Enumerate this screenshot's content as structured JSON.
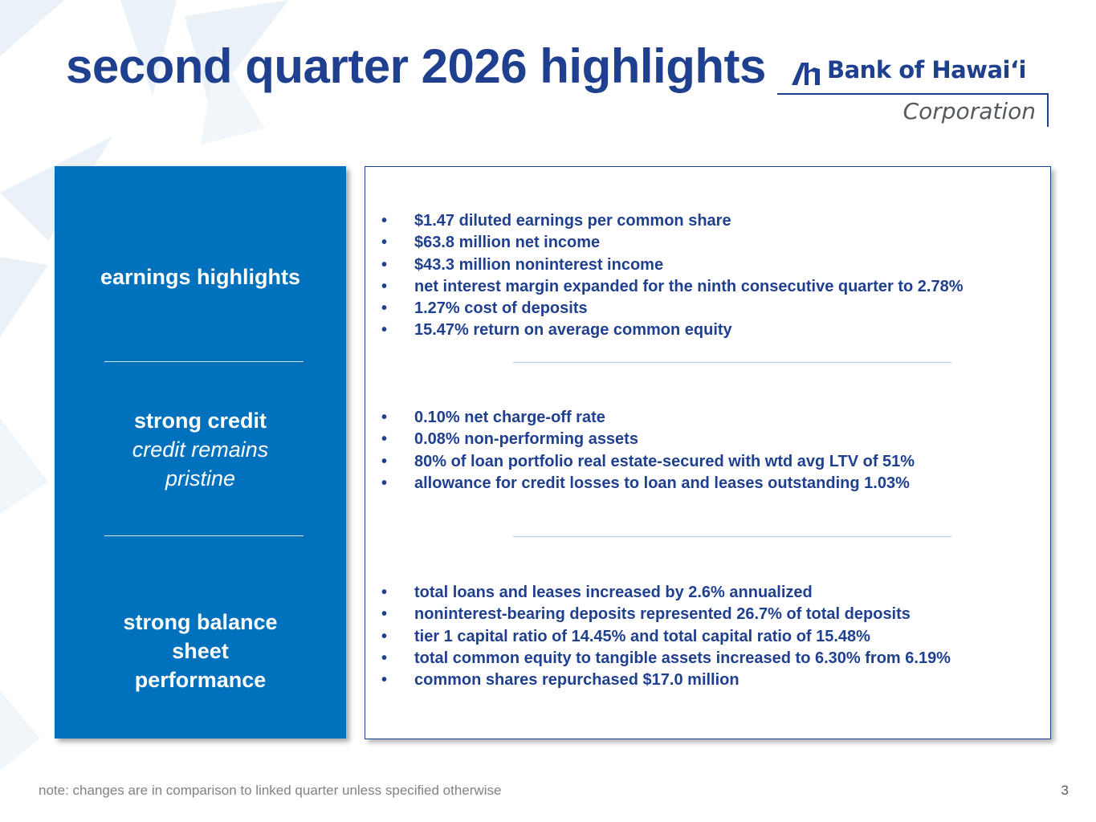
{
  "title": "second quarter 2026 highlights",
  "logo": {
    "name": "Bank of Hawaiʻi",
    "subtitle": "Corporation"
  },
  "sections": [
    {
      "heading": "earnings highlights",
      "subheading": "",
      "bullets": [
        "$1.47 diluted earnings per common share",
        "$63.8 million net income",
        "$43.3 million noninterest income",
        "net interest margin expanded for the ninth consecutive quarter to 2.78%",
        "1.27% cost of deposits",
        "15.47% return on average common equity"
      ]
    },
    {
      "heading": "strong credit",
      "subheading": "credit remains pristine",
      "bullets": [
        "0.10% net charge-off rate",
        "0.08% non-performing assets",
        "80% of loan portfolio real estate-secured with wtd avg LTV of 51%",
        "allowance for credit losses to loan and leases outstanding 1.03%"
      ]
    },
    {
      "heading": "strong balance sheet performance",
      "subheading": "",
      "bullets": [
        "total loans and leases increased by 2.6% annualized",
        "noninterest-bearing deposits represented 26.7% of total deposits",
        "tier 1 capital ratio of 14.45% and total capital ratio of 15.48%",
        "total common equity to tangible assets increased to 6.30% from 6.19%",
        "common shares repurchased $17.0 million"
      ]
    }
  ],
  "footer": {
    "note": "note: changes are in comparison to linked quarter unless specified otherwise",
    "page_number": "3"
  },
  "colors": {
    "brand_blue": "#1f3f8f",
    "panel_blue": "#0071bc",
    "divider_light": "#a9cde3"
  },
  "icons": {
    "background": "starburst-decoration-icon",
    "logo_mark": "bank-of-hawaii-logo-icon"
  }
}
